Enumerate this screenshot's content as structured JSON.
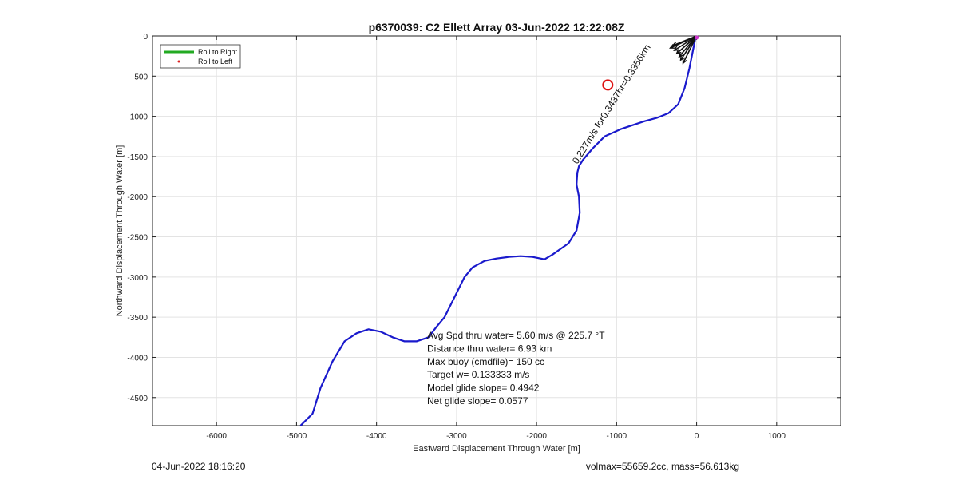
{
  "chart_data": {
    "type": "line",
    "title": "p6370039: C2 Ellett Array 03-Jun-2022 12:22:08Z",
    "xlabel": "Eastward Displacement Through Water [m]",
    "ylabel": "Northward Displacement Through Water [m]",
    "xlim": [
      -6800,
      1800
    ],
    "ylim": [
      -4850,
      0
    ],
    "x_ticks": [
      -6000,
      -5000,
      -4000,
      -3000,
      -2000,
      -1000,
      0,
      1000
    ],
    "y_ticks": [
      0,
      -500,
      -1000,
      -1500,
      -2000,
      -2500,
      -3000,
      -3500,
      -4000,
      -4500
    ],
    "x_tick_labels": [
      "-6000",
      "-5000",
      "-4000",
      "-3000",
      "-2000",
      "-1000",
      "0",
      "1000"
    ],
    "y_tick_labels": [
      "0",
      "-500",
      "-1000",
      "-1500",
      "-2000",
      "-2500",
      "-3000",
      "-3500",
      "-4000",
      "-4500"
    ],
    "grid": true,
    "legend_position": "top-left",
    "legend": [
      {
        "label": "Roll to Right",
        "color": "#22aa22",
        "style": "line"
      },
      {
        "label": "Roll to Left",
        "color": "#dd2222",
        "style": "dot"
      }
    ],
    "series": [
      {
        "color": "#1a1acc",
        "x": [
          -4950,
          -4800,
          -4700,
          -4550,
          -4400,
          -4250,
          -4100,
          -3950,
          -3800,
          -3650,
          -3500,
          -3350,
          -3250,
          -3150,
          -3050,
          -2900,
          -2800,
          -2650,
          -2500,
          -2350,
          -2200,
          -2050,
          -1900,
          -1800,
          -1700,
          -1600,
          -1500,
          -1460,
          -1470,
          -1500,
          -1490,
          -1470,
          -1420,
          -1300,
          -1150,
          -950,
          -800,
          -650,
          -500,
          -350,
          -230,
          -150,
          -90,
          -50,
          -10
        ],
        "y": [
          -4850,
          -4700,
          -4380,
          -4050,
          -3800,
          -3700,
          -3650,
          -3680,
          -3750,
          -3800,
          -3800,
          -3750,
          -3620,
          -3500,
          -3300,
          -3000,
          -2880,
          -2800,
          -2770,
          -2750,
          -2740,
          -2750,
          -2780,
          -2720,
          -2650,
          -2580,
          -2420,
          -2200,
          -2000,
          -1850,
          -1700,
          -1620,
          -1540,
          -1400,
          -1250,
          -1160,
          -1110,
          -1060,
          -1020,
          -960,
          -850,
          -650,
          -400,
          -200,
          0
        ]
      }
    ],
    "marker": {
      "label": "circle-marker",
      "x": -1110,
      "y": -610,
      "color": "#dd1111"
    },
    "slanted_label": {
      "text": "0.227m/s for0.3437hr=0.3356km",
      "x": -1490,
      "y": -1600,
      "angle": -58
    },
    "arrows": [
      {
        "dx": -300,
        "dy": -120
      },
      {
        "dx": -330,
        "dy": -150
      },
      {
        "dx": -280,
        "dy": -180
      },
      {
        "dx": -250,
        "dy": -220
      },
      {
        "dx": -220,
        "dy": -260
      },
      {
        "dx": -200,
        "dy": -300
      },
      {
        "dx": -170,
        "dy": -340
      }
    ],
    "annotation_lines": [
      "Avg Spd thru water=  5.60 m/s @ 225.7 °T",
      "Distance thru water=  6.93 km",
      "Max buoy (cmdfile)= 150 cc",
      "Target w= 0.133333 m/s",
      "Model glide slope= 0.4942",
      "Net glide slope= 0.0577"
    ]
  },
  "footer": {
    "left": "04-Jun-2022 18:16:20",
    "right": "volmax=55659.2cc, mass=56.613kg"
  }
}
